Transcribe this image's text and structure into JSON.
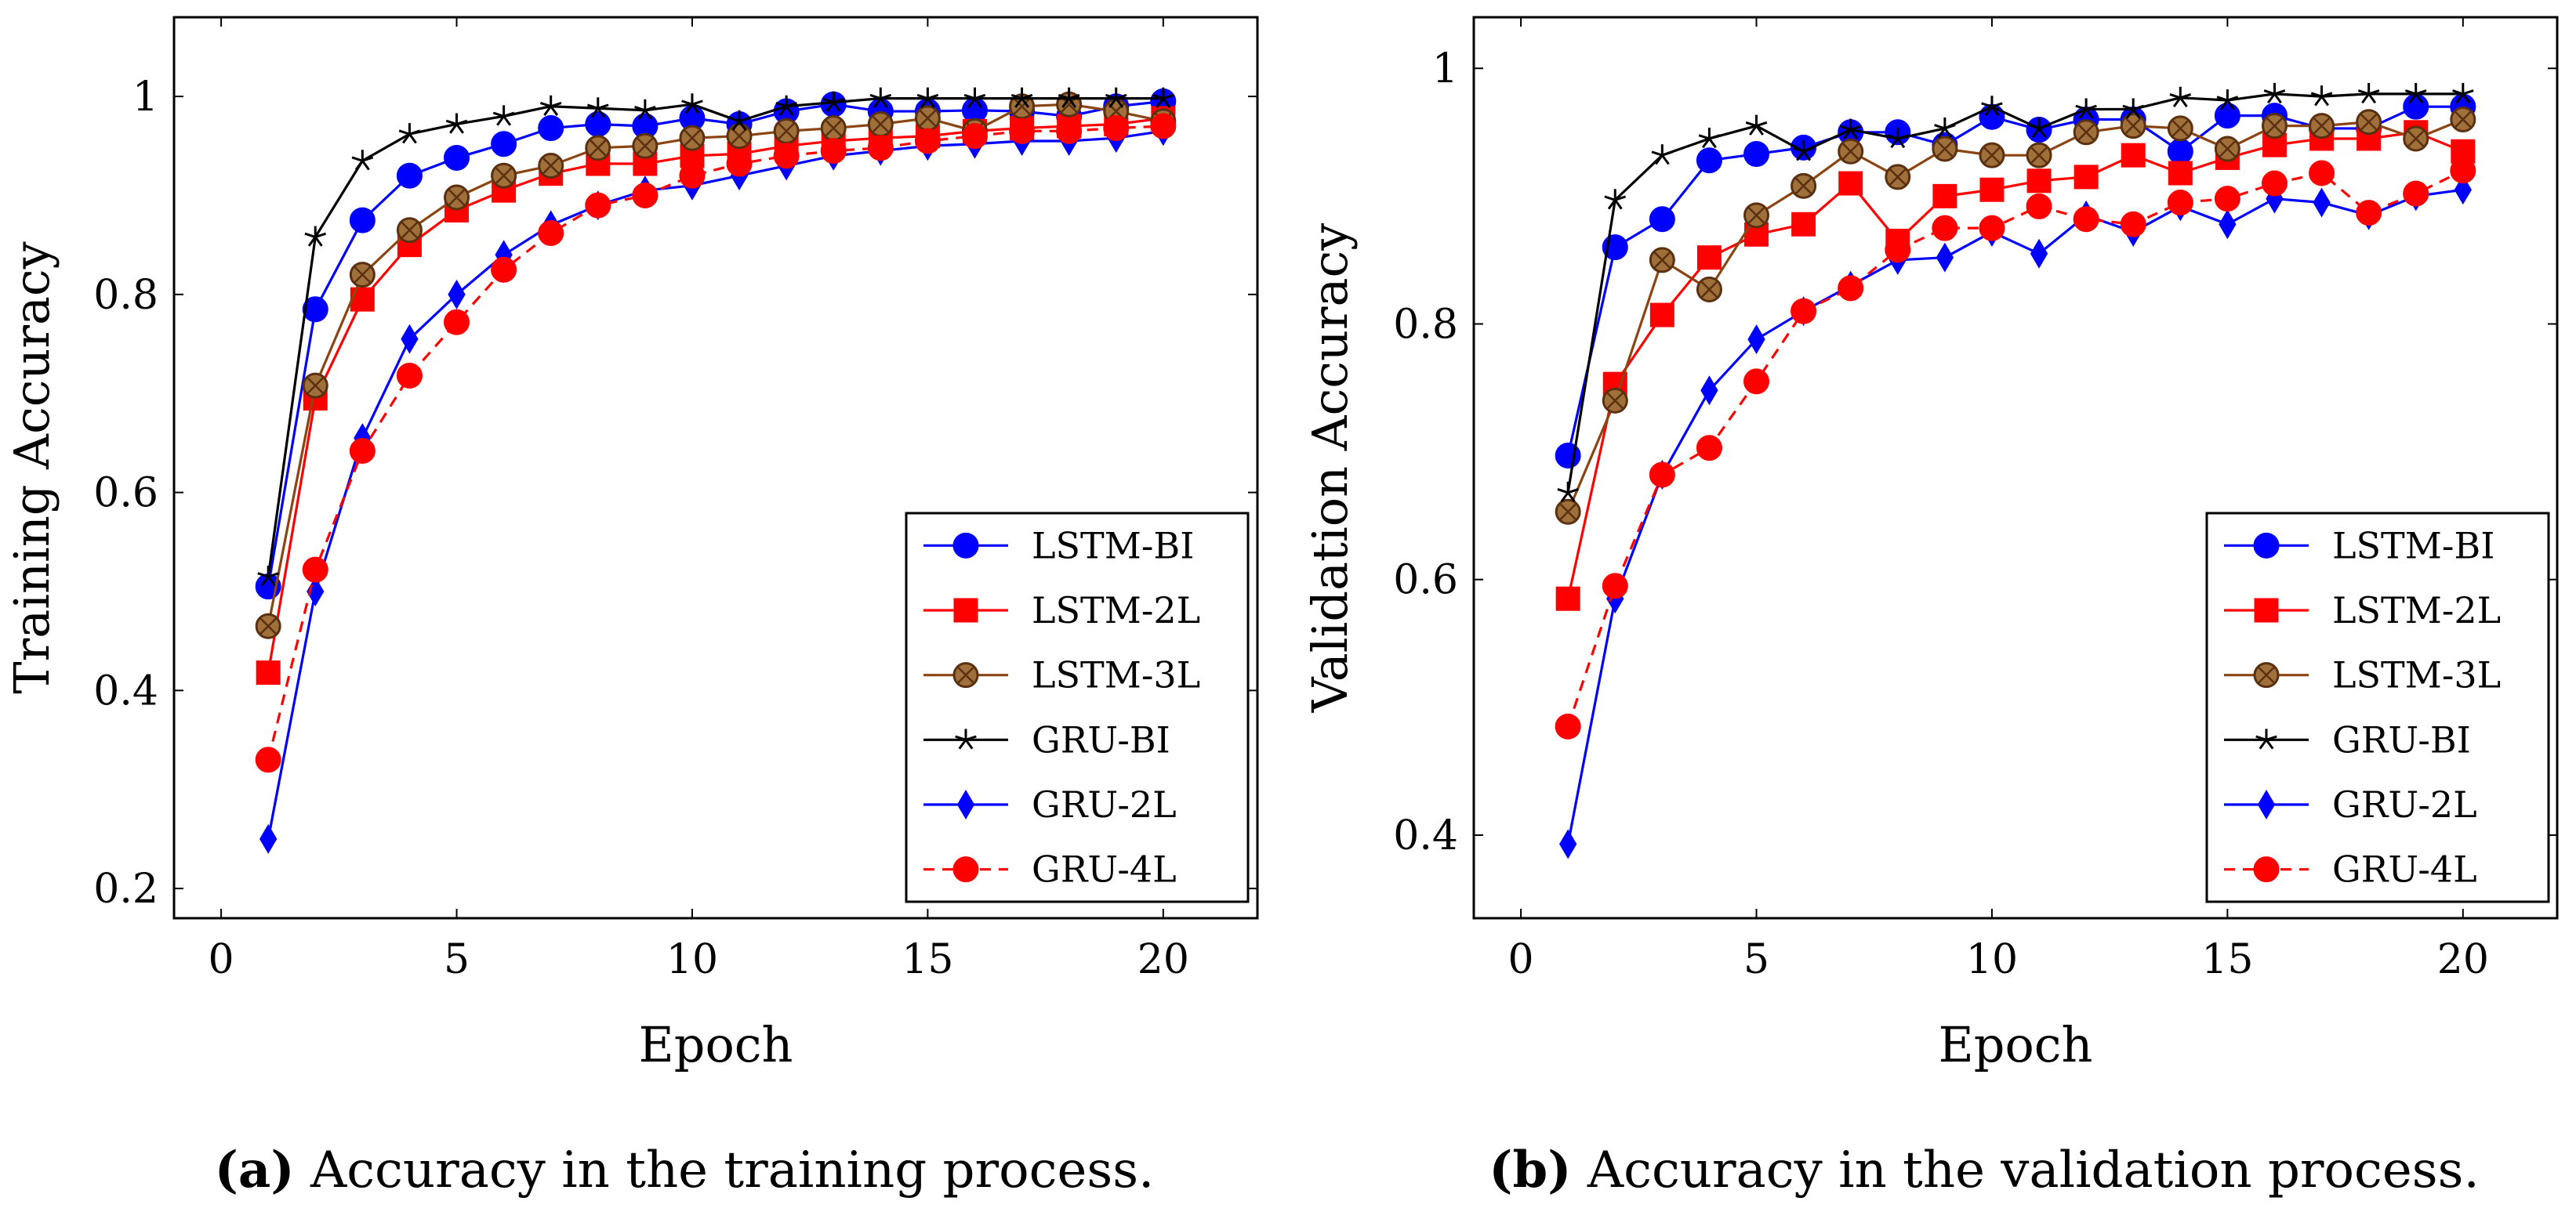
{
  "series_styles": [
    {
      "name": "LSTM-BI",
      "color": "#0000ff",
      "marker": "circle",
      "dashed": false,
      "fill": "#0000ff"
    },
    {
      "name": "LSTM-2L",
      "color": "#ff0000",
      "marker": "square",
      "dashed": false,
      "fill": "#ff0000"
    },
    {
      "name": "LSTM-3L",
      "color": "#8b4513",
      "marker": "otimes",
      "dashed": false,
      "fill": "#a0703a"
    },
    {
      "name": "GRU-BI",
      "color": "#000000",
      "marker": "star",
      "dashed": false,
      "fill": "#000000"
    },
    {
      "name": "GRU-2L",
      "color": "#0000ff",
      "marker": "diamond",
      "dashed": false,
      "fill": "#0000ff"
    },
    {
      "name": "GRU-4L",
      "color": "#ff0000",
      "marker": "circle",
      "dashed": true,
      "fill": "#ff0000"
    }
  ],
  "chart_data": [
    {
      "type": "line",
      "xlabel": "Epoch",
      "ylabel": "Training Accuracy",
      "caption_label": "(a)",
      "caption_text": " Accuracy in the training process.",
      "xlim": [
        -1,
        22
      ],
      "ylim": [
        0.17,
        1.08
      ],
      "xticks": [
        0,
        5,
        10,
        15,
        20
      ],
      "yticks": [
        0.2,
        0.4,
        0.6,
        0.8,
        1.0
      ],
      "ytick_labels": [
        "0.2",
        "0.4",
        "0.6",
        "0.8",
        "1"
      ],
      "grid": false,
      "legend_position": "bottom-right",
      "x": [
        1,
        2,
        3,
        4,
        5,
        6,
        7,
        8,
        9,
        10,
        11,
        12,
        13,
        14,
        15,
        16,
        17,
        18,
        19,
        20
      ],
      "series": [
        {
          "name": "LSTM-BI",
          "values": [
            0.505,
            0.785,
            0.875,
            0.92,
            0.938,
            0.952,
            0.968,
            0.972,
            0.97,
            0.978,
            0.972,
            0.985,
            0.992,
            0.985,
            0.985,
            0.986,
            0.985,
            0.98,
            0.99,
            0.995
          ]
        },
        {
          "name": "LSTM-2L",
          "values": [
            0.418,
            0.695,
            0.795,
            0.85,
            0.885,
            0.905,
            0.922,
            0.932,
            0.932,
            0.94,
            0.942,
            0.95,
            0.955,
            0.958,
            0.96,
            0.965,
            0.968,
            0.97,
            0.972,
            0.978
          ]
        },
        {
          "name": "LSTM-3L",
          "values": [
            0.465,
            0.708,
            0.82,
            0.865,
            0.898,
            0.92,
            0.93,
            0.948,
            0.95,
            0.958,
            0.96,
            0.965,
            0.968,
            0.972,
            0.978,
            0.965,
            0.99,
            0.992,
            0.985,
            0.975
          ]
        },
        {
          "name": "GRU-BI",
          "values": [
            0.515,
            0.858,
            0.935,
            0.962,
            0.972,
            0.98,
            0.99,
            0.988,
            0.986,
            0.992,
            0.975,
            0.99,
            0.994,
            0.998,
            0.998,
            0.998,
            0.998,
            0.998,
            0.998,
            0.998
          ]
        },
        {
          "name": "GRU-2L",
          "values": [
            0.25,
            0.5,
            0.655,
            0.755,
            0.8,
            0.84,
            0.87,
            0.89,
            0.905,
            0.91,
            0.92,
            0.93,
            0.94,
            0.945,
            0.95,
            0.952,
            0.955,
            0.955,
            0.958,
            0.965
          ]
        },
        {
          "name": "GRU-4L",
          "values": [
            0.33,
            0.522,
            0.642,
            0.718,
            0.772,
            0.825,
            0.862,
            0.89,
            0.9,
            0.92,
            0.932,
            0.94,
            0.945,
            0.948,
            0.955,
            0.96,
            0.965,
            0.965,
            0.968,
            0.97
          ]
        }
      ]
    },
    {
      "type": "line",
      "xlabel": "Epoch",
      "ylabel": "Validation Accuracy",
      "caption_label": "(b)",
      "caption_text": " Accuracy in the validation process.",
      "xlim": [
        -1,
        22
      ],
      "ylim": [
        0.335,
        1.04
      ],
      "xticks": [
        0,
        5,
        10,
        15,
        20
      ],
      "yticks": [
        0.4,
        0.6,
        0.8,
        1.0
      ],
      "ytick_labels": [
        "0.4",
        "0.6",
        "0.8",
        "1"
      ],
      "grid": false,
      "legend_position": "bottom-right",
      "x": [
        1,
        2,
        3,
        4,
        5,
        6,
        7,
        8,
        9,
        10,
        11,
        12,
        13,
        14,
        15,
        16,
        17,
        18,
        19,
        20
      ],
      "series": [
        {
          "name": "LSTM-BI",
          "values": [
            0.697,
            0.86,
            0.882,
            0.928,
            0.933,
            0.938,
            0.95,
            0.95,
            0.94,
            0.962,
            0.952,
            0.96,
            0.96,
            0.935,
            0.963,
            0.963,
            0.953,
            0.953,
            0.97,
            0.97
          ]
        },
        {
          "name": "LSTM-2L",
          "values": [
            0.585,
            0.753,
            0.807,
            0.852,
            0.87,
            0.878,
            0.91,
            0.865,
            0.9,
            0.905,
            0.912,
            0.915,
            0.932,
            0.918,
            0.93,
            0.94,
            0.945,
            0.945,
            0.95,
            0.935
          ]
        },
        {
          "name": "LSTM-3L",
          "values": [
            0.653,
            0.74,
            0.85,
            0.827,
            0.885,
            0.908,
            0.935,
            0.915,
            0.937,
            0.932,
            0.932,
            0.95,
            0.955,
            0.953,
            0.937,
            0.955,
            0.955,
            0.958,
            0.945,
            0.96
          ]
        },
        {
          "name": "GRU-BI",
          "values": [
            0.668,
            0.897,
            0.932,
            0.945,
            0.955,
            0.935,
            0.952,
            0.945,
            0.953,
            0.97,
            0.953,
            0.968,
            0.968,
            0.977,
            0.975,
            0.98,
            0.978,
            0.98,
            0.98,
            0.98
          ]
        },
        {
          "name": "GRU-2L",
          "values": [
            0.393,
            0.585,
            0.682,
            0.748,
            0.788,
            0.81,
            0.83,
            0.85,
            0.852,
            0.872,
            0.855,
            0.885,
            0.872,
            0.892,
            0.878,
            0.898,
            0.895,
            0.885,
            0.9,
            0.905
          ]
        },
        {
          "name": "GRU-4L",
          "values": [
            0.485,
            0.595,
            0.682,
            0.703,
            0.755,
            0.81,
            0.828,
            0.858,
            0.875,
            0.875,
            0.892,
            0.882,
            0.878,
            0.895,
            0.898,
            0.91,
            0.918,
            0.887,
            0.902,
            0.92
          ]
        }
      ]
    }
  ]
}
